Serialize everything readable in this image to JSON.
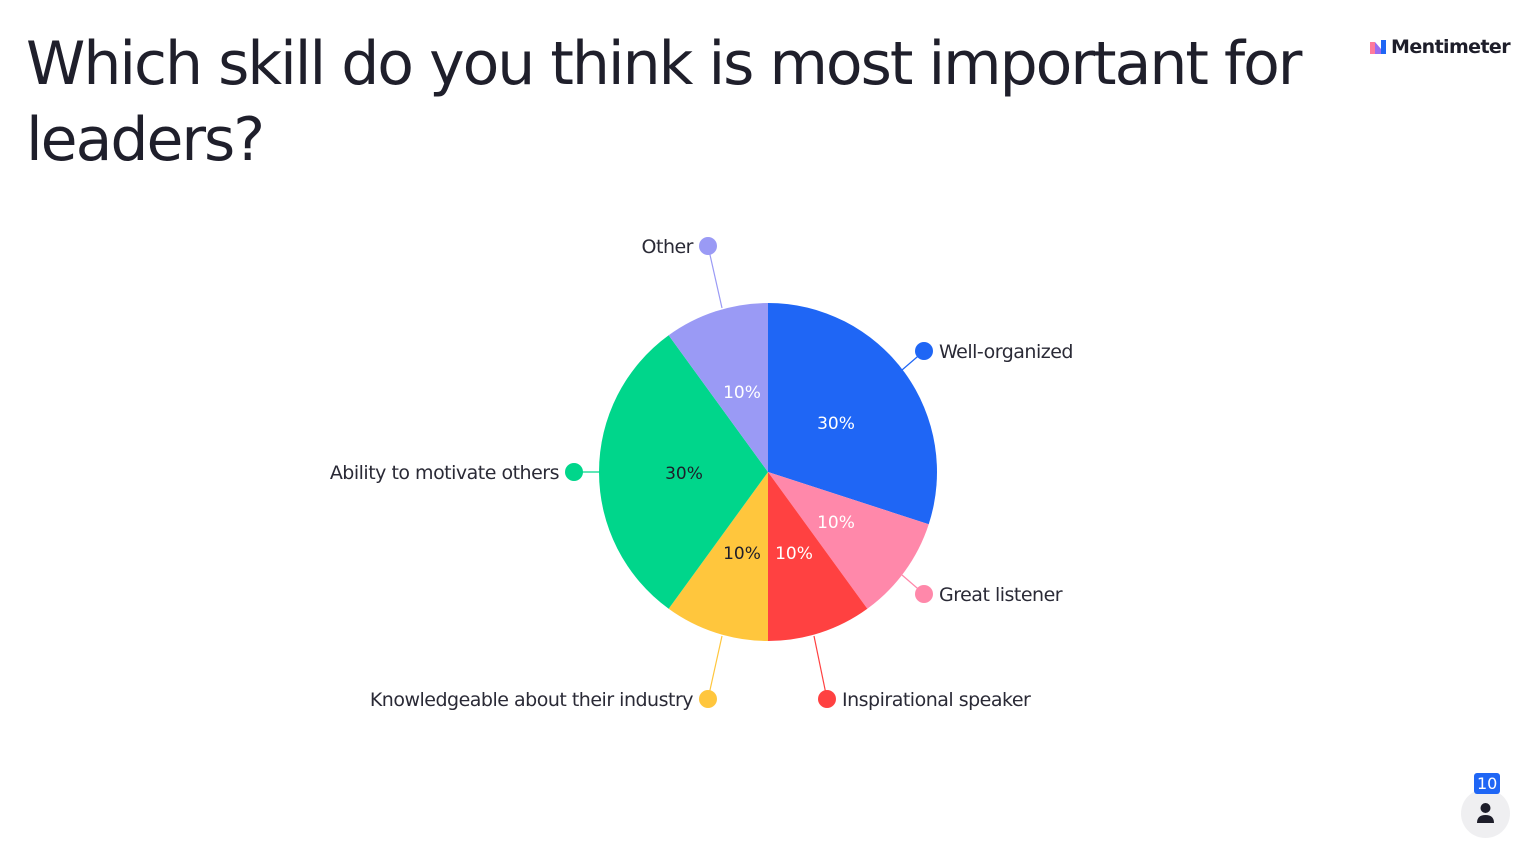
{
  "chart_data": {
    "type": "pie",
    "title": "Which skill do you think is most important for leaders?",
    "slices": [
      {
        "label": "Well-organized",
        "value": 30,
        "value_label": "30%",
        "color": "#1f66f5",
        "label_color": "#ffffff"
      },
      {
        "label": "Great listener",
        "value": 10,
        "value_label": "10%",
        "color": "#ff88aa",
        "label_color": "#ffffff"
      },
      {
        "label": "Inspirational speaker",
        "value": 10,
        "value_label": "10%",
        "color": "#ff4141",
        "label_color": "#ffffff"
      },
      {
        "label": "Knowledgeable about their industry",
        "value": 10,
        "value_label": "10%",
        "color": "#ffc63d",
        "label_color": "#1e1e2a"
      },
      {
        "label": "Ability to motivate others",
        "value": 30,
        "value_label": "30%",
        "color": "#00d68b",
        "label_color": "#1e1e2a"
      },
      {
        "label": "Other",
        "value": 10,
        "value_label": "10%",
        "color": "#9a9af5",
        "label_color": "#ffffff"
      }
    ]
  },
  "brand": {
    "name": "Mentimeter"
  },
  "participants": {
    "count": "10",
    "icon": "person-icon"
  }
}
